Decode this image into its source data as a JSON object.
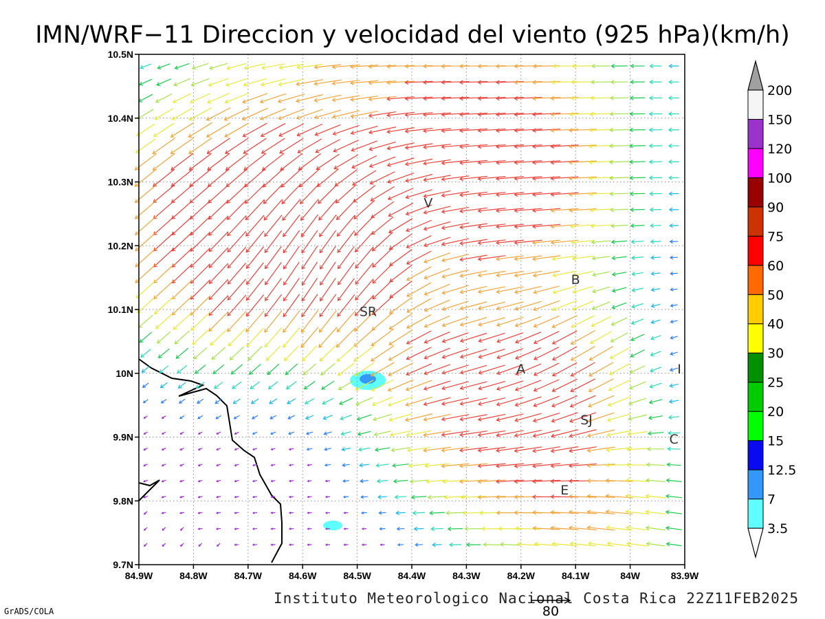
{
  "title": "IMN/WRF−11 Direccion y velocidad del viento (925 hPa)(km/h)",
  "footer": "Instituto Meteorologico Nacional Costa Rica 22Z11FEB2025",
  "credit": "GrADS/COLA",
  "reference_vector": {
    "label": "80",
    "speed": 80
  },
  "map": {
    "lon_range": [
      -84.9,
      -83.9
    ],
    "lat_range": [
      9.7,
      10.5
    ],
    "grid": "dotted",
    "x_ticks": [
      "84.9W",
      "84.8W",
      "84.7W",
      "84.6W",
      "84.5W",
      "84.4W",
      "84.3W",
      "84.2W",
      "84.1W",
      "84W",
      "83.9W"
    ],
    "y_ticks": [
      "9.7N",
      "9.8N",
      "9.9N",
      "10N",
      "10.1N",
      "10.2N",
      "10.3N",
      "10.4N",
      "10.5N"
    ]
  },
  "cities": [
    {
      "label": "V",
      "lon": -84.37,
      "lat": 10.26
    },
    {
      "label": "SR",
      "lon": -84.48,
      "lat": 10.09
    },
    {
      "label": "B",
      "lon": -84.1,
      "lat": 10.14
    },
    {
      "label": "A",
      "lon": -84.2,
      "lat": 10.0
    },
    {
      "label": "I",
      "lon": -83.91,
      "lat": 10.0
    },
    {
      "label": "SJ",
      "lon": -84.08,
      "lat": 9.92
    },
    {
      "label": "C",
      "lon": -83.92,
      "lat": 9.89
    },
    {
      "label": "E",
      "lon": -84.12,
      "lat": 9.81
    }
  ],
  "colorbar": {
    "labels": [
      "3.5",
      "7",
      "12.5",
      "15",
      "20",
      "25",
      "30",
      "40",
      "50",
      "60",
      "75",
      "90",
      "100",
      "120",
      "150",
      "200"
    ],
    "colors": [
      "#60ffff",
      "#3498fb",
      "#0a0af0",
      "#00ff00",
      "#00cc00",
      "#009000",
      "#ffff00",
      "#ffcc00",
      "#ff6a00",
      "#ff0000",
      "#cc3300",
      "#990000",
      "#ff00ff",
      "#9933cc",
      "#f5f5f5"
    ],
    "over_color": "#a0a0a0",
    "under_color": "#ffffff"
  }
}
